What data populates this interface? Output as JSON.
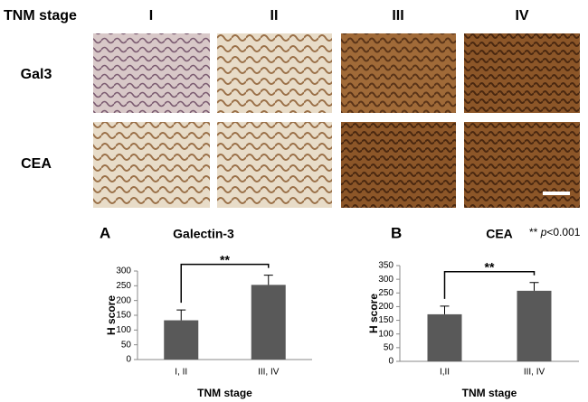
{
  "panel": {
    "row_header": "TNM stage",
    "columns": [
      "I",
      "II",
      "III",
      "IV"
    ],
    "rows": [
      "Gal3",
      "CEA"
    ]
  },
  "note": {
    "stars": "**",
    "p": "p",
    "threshold": "<0.001"
  },
  "chart_data": [
    {
      "type": "bar",
      "panel_label": "A",
      "title": "Galectin-3",
      "ylabel": "H score",
      "xlabel": "TNM stage",
      "categories": [
        "I, II",
        "III, IV"
      ],
      "values": [
        133,
        253
      ],
      "errors": [
        35,
        33
      ],
      "color": "#595959",
      "ylim": [
        0,
        300
      ],
      "yticks": [
        0,
        50,
        100,
        150,
        200,
        250,
        300
      ],
      "significance": "**"
    },
    {
      "type": "bar",
      "panel_label": "B",
      "title": "CEA",
      "ylabel": "H score",
      "xlabel": "TNM stage",
      "categories": [
        "I,II",
        "III, IV"
      ],
      "values": [
        172,
        258
      ],
      "errors": [
        30,
        30
      ],
      "color": "#595959",
      "ylim": [
        0,
        350
      ],
      "yticks": [
        0,
        50,
        100,
        150,
        200,
        250,
        300,
        350
      ],
      "significance": "**"
    }
  ]
}
